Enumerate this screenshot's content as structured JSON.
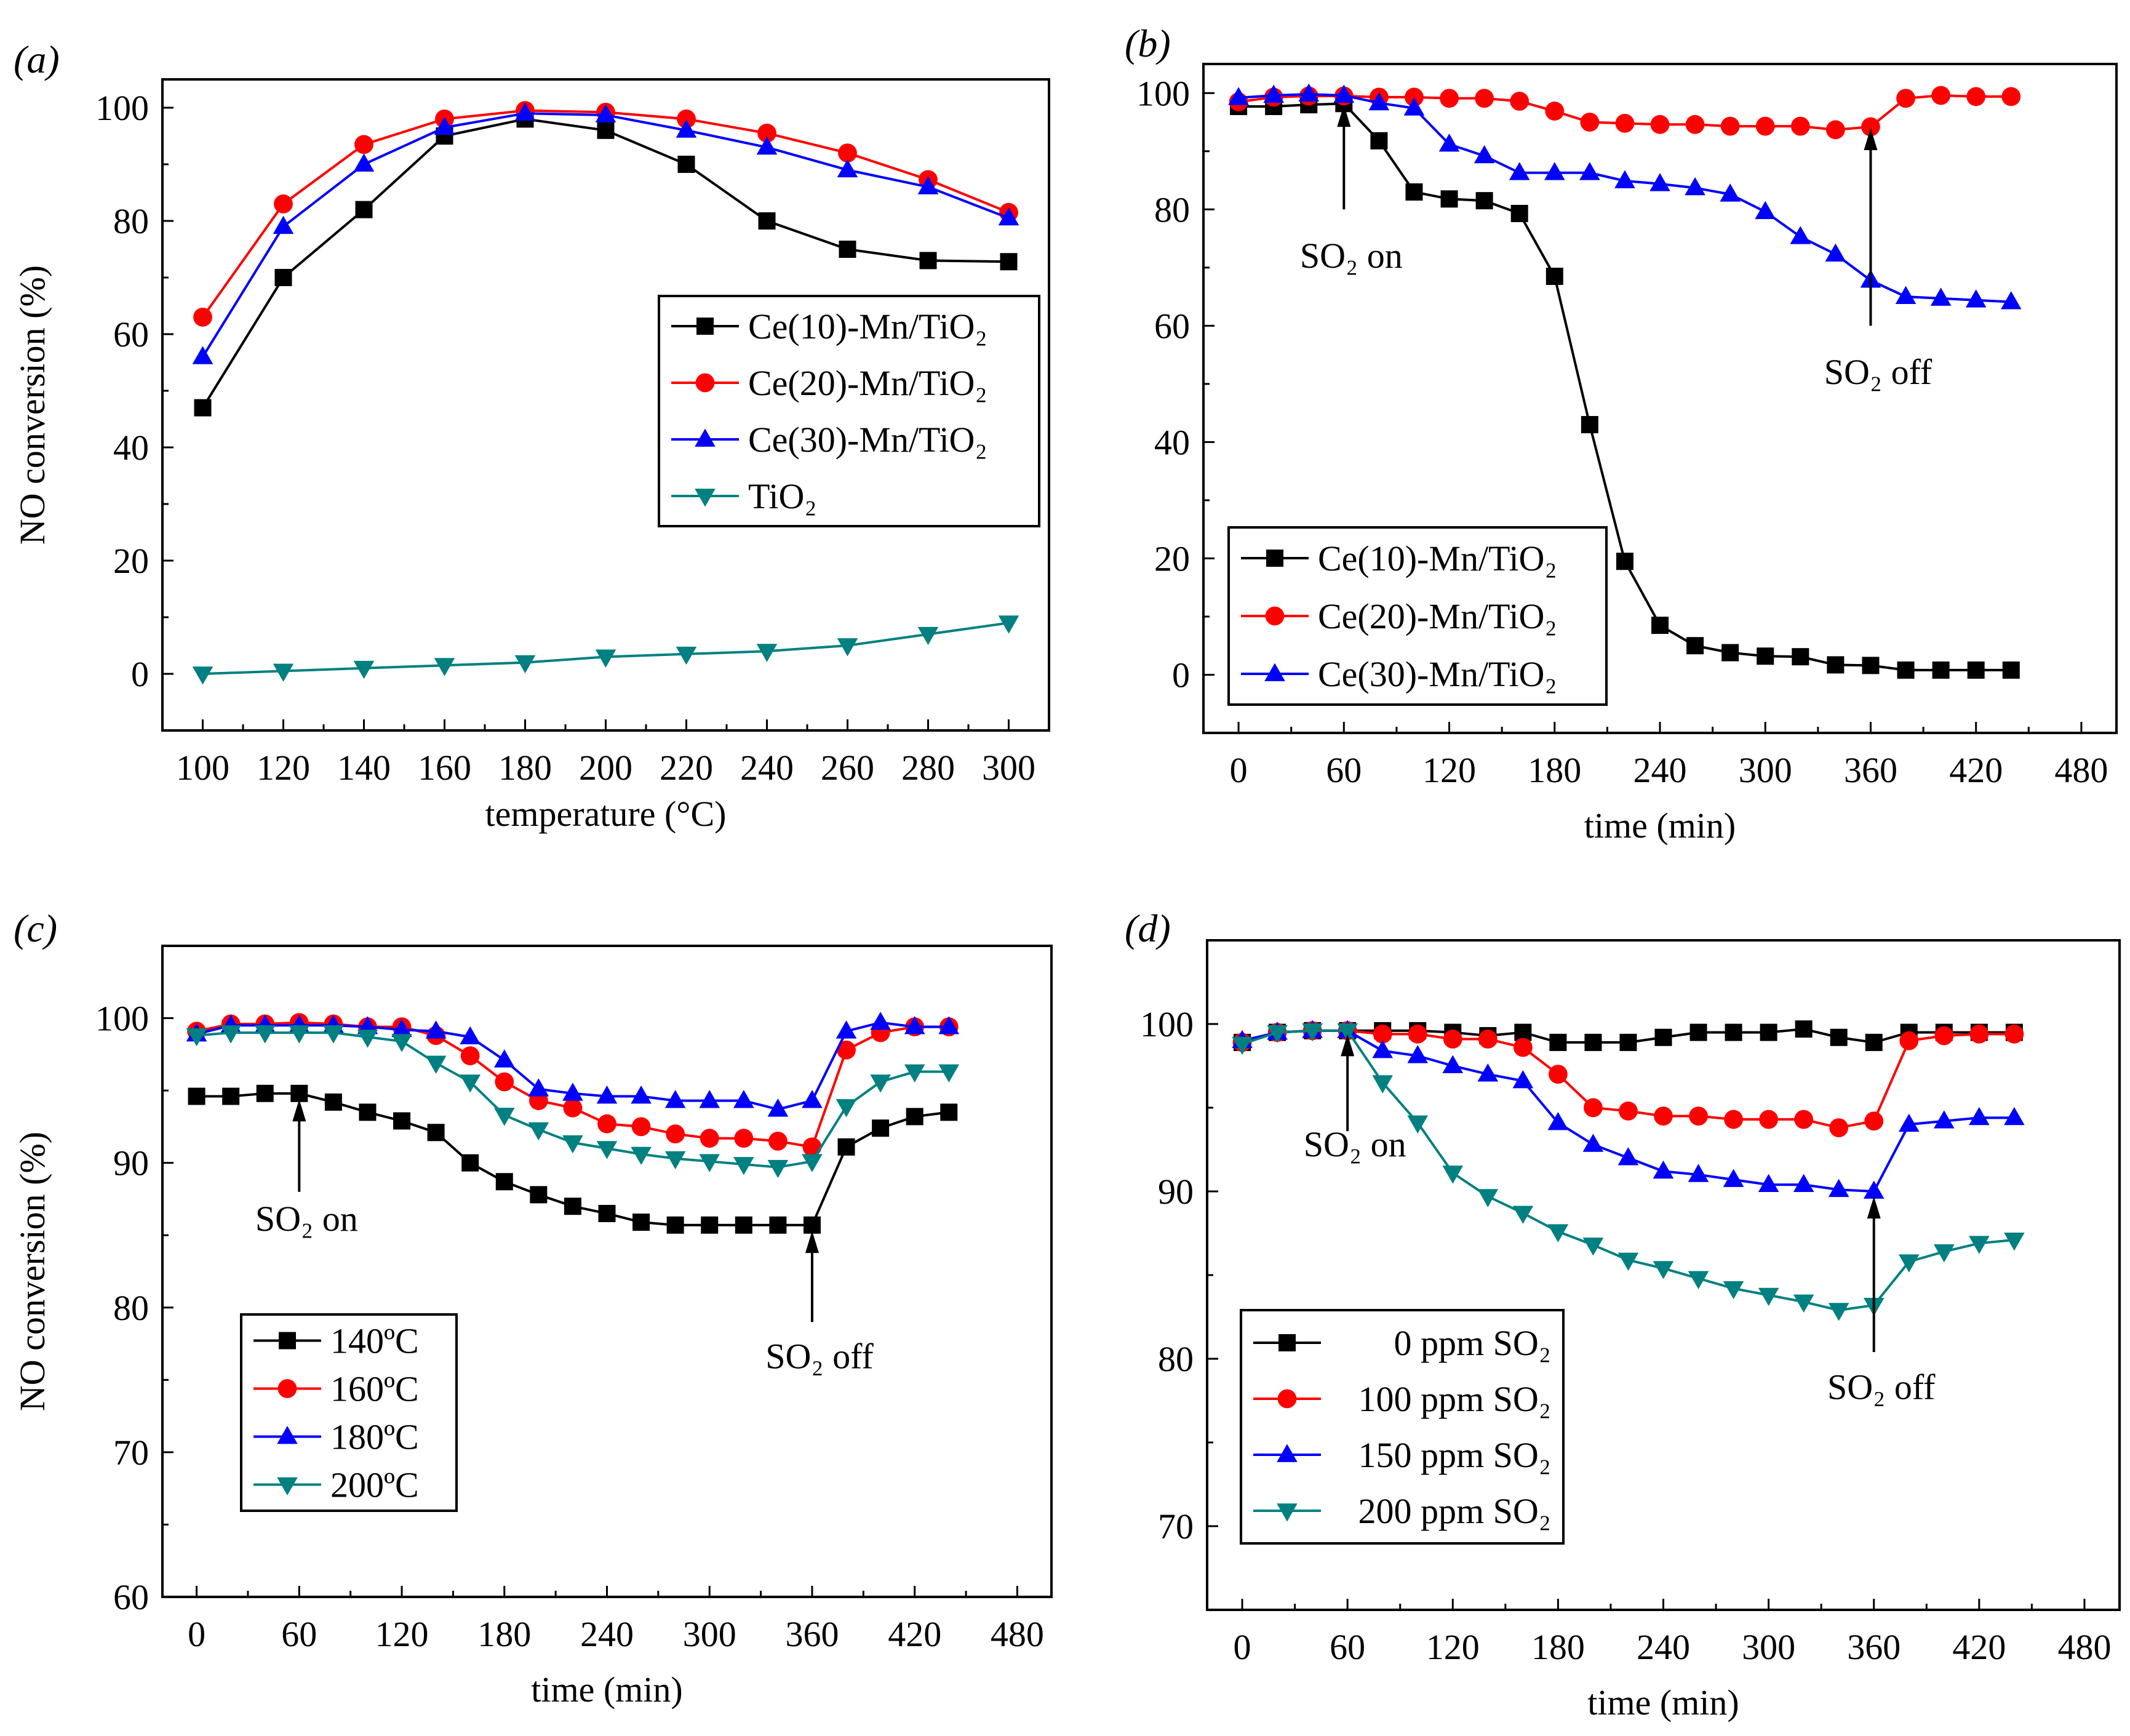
{
  "chart_data": [
    {
      "panel_label": "(a)",
      "type": "line",
      "xlabel": "temperature (°C)",
      "ylabel": "NO conversion (%)",
      "xlim": [
        90,
        310
      ],
      "ylim": [
        -10,
        105
      ],
      "xticks": [
        100,
        120,
        140,
        160,
        180,
        200,
        220,
        240,
        260,
        280,
        300
      ],
      "xminor": 10,
      "yticks": [
        0,
        20,
        40,
        60,
        80,
        100
      ],
      "yminor": 10,
      "legend_position": "center-right",
      "x": [
        100,
        120,
        140,
        160,
        180,
        200,
        220,
        240,
        260,
        280,
        300
      ],
      "series": [
        {
          "name": "Ce(10)-Mn/TiO₂",
          "color": "#000000",
          "marker": "square",
          "values": [
            47,
            70,
            82,
            95,
            98,
            96,
            90,
            80,
            75,
            73,
            72.8
          ]
        },
        {
          "name": "Ce(20)-Mn/TiO₂",
          "color": "#ff0000",
          "marker": "circle",
          "values": [
            63,
            83,
            93.5,
            98,
            99.5,
            99.2,
            98,
            95.5,
            92,
            87.3,
            81.5
          ]
        },
        {
          "name": "Ce(30)-Mn/TiO₂",
          "color": "#0000ff",
          "marker": "triangle-up",
          "values": [
            56,
            79,
            90,
            96.5,
            99,
            98.7,
            96,
            93,
            89,
            86,
            80.5
          ]
        },
        {
          "name": "TiO₂",
          "color": "#008080",
          "marker": "triangle-down",
          "values": [
            0,
            0.5,
            1,
            1.5,
            2,
            3,
            3.5,
            4,
            5,
            7,
            9
          ]
        }
      ],
      "annotations": []
    },
    {
      "panel_label": "(b)",
      "type": "line",
      "xlabel": "time (min)",
      "ylabel": "",
      "xlim": [
        -20,
        500
      ],
      "ylim": [
        -10,
        105
      ],
      "xticks": [
        0,
        60,
        120,
        180,
        240,
        300,
        360,
        420,
        480
      ],
      "xminor": 30,
      "yticks": [
        0,
        20,
        40,
        60,
        80,
        100
      ],
      "yminor": 10,
      "legend_position": "bottom-left",
      "x": [
        0,
        20,
        40,
        60,
        80,
        100,
        120,
        140,
        160,
        180,
        200,
        220,
        240,
        260,
        280,
        300,
        320,
        340,
        360,
        380,
        400,
        420,
        440
      ],
      "series": [
        {
          "name": "Ce(10)-Mn/TiO₂",
          "color": "#000000",
          "marker": "square",
          "values": [
            97.7,
            97.7,
            98,
            98.2,
            91.8,
            83,
            81.8,
            81.5,
            79.3,
            68.5,
            43,
            19.5,
            8.5,
            5,
            3.8,
            3.2,
            3.1,
            1.7,
            1.6,
            0.8,
            0.8,
            0.8,
            0.8
          ]
        },
        {
          "name": "Ce(20)-Mn/TiO₂",
          "color": "#ff0000",
          "marker": "circle",
          "values": [
            98.5,
            99.3,
            99.5,
            99.5,
            99.3,
            99.3,
            99.1,
            99.1,
            98.6,
            96.9,
            95,
            94.8,
            94.6,
            94.6,
            94.3,
            94.3,
            94.3,
            93.7,
            94.2,
            99.1,
            99.6,
            99.4,
            99.4
          ]
        },
        {
          "name": "Ce(30)-Mn/TiO₂",
          "color": "#0000ff",
          "marker": "triangle-up",
          "values": [
            99.2,
            99.6,
            99.8,
            99.6,
            98.3,
            97.4,
            91.2,
            89.2,
            86.3,
            86.3,
            86.3,
            84.9,
            84.4,
            83.7,
            82.6,
            79.6,
            75.3,
            72.3,
            67.8,
            65,
            64.7,
            64.4,
            64.1
          ]
        }
      ],
      "annotations": [
        {
          "text": "SO₂ on",
          "x": 60,
          "arrow_from": 80,
          "arrow_to": 98,
          "text_y": 70
        },
        {
          "text": "SO₂ off",
          "x": 360,
          "arrow_from": 60,
          "arrow_to": 94,
          "text_y": 50
        }
      ]
    },
    {
      "panel_label": "(c)",
      "type": "line",
      "xlabel": "time (min)",
      "ylabel": "NO conversion (%)",
      "xlim": [
        -20,
        500
      ],
      "ylim": [
        60,
        105
      ],
      "xticks": [
        0,
        60,
        120,
        180,
        240,
        300,
        360,
        420,
        480
      ],
      "xminor": 30,
      "yticks": [
        60,
        70,
        80,
        90,
        100
      ],
      "yminor": 5,
      "legend_position": "lower-left",
      "x": [
        0,
        20,
        40,
        60,
        80,
        100,
        120,
        140,
        160,
        180,
        200,
        220,
        240,
        260,
        280,
        300,
        320,
        340,
        360,
        380,
        400,
        420,
        440
      ],
      "series": [
        {
          "name": "140ºC",
          "color": "#000000",
          "marker": "square",
          "values": [
            94.6,
            94.6,
            94.8,
            94.8,
            94.2,
            93.5,
            92.9,
            92.1,
            90,
            88.7,
            87.8,
            87.0,
            86.5,
            85.9,
            85.7,
            85.7,
            85.7,
            85.7,
            85.7,
            91.1,
            92.4,
            93.2,
            93.5
          ]
        },
        {
          "name": "160ºC",
          "color": "#ff0000",
          "marker": "circle",
          "values": [
            99.1,
            99.6,
            99.6,
            99.7,
            99.6,
            99.4,
            99.4,
            98.8,
            97.4,
            95.6,
            94.3,
            93.8,
            92.7,
            92.5,
            92.0,
            91.7,
            91.7,
            91.5,
            91.1,
            97.8,
            99.0,
            99.4,
            99.4
          ]
        },
        {
          "name": "180ºC",
          "color": "#0000ff",
          "marker": "triangle-up",
          "values": [
            98.9,
            99.5,
            99.5,
            99.5,
            99.5,
            99.4,
            99.2,
            99.1,
            98.7,
            97.1,
            95.1,
            94.8,
            94.6,
            94.6,
            94.3,
            94.3,
            94.3,
            93.7,
            94.3,
            99.1,
            99.7,
            99.4,
            99.4
          ]
        },
        {
          "name": "200ºC",
          "color": "#008080",
          "marker": "triangle-down",
          "values": [
            98.8,
            99.0,
            99.0,
            99.0,
            99.0,
            98.7,
            98.4,
            96.9,
            95.6,
            93.3,
            92.3,
            91.4,
            91.0,
            90.6,
            90.3,
            90.1,
            89.9,
            89.7,
            90.1,
            93.9,
            95.6,
            96.3,
            96.3
          ]
        }
      ],
      "annotations": [
        {
          "text": "SO₂ on",
          "x": 60,
          "arrow_from": 88,
          "arrow_to": 94.4,
          "text_y": 85.3
        },
        {
          "text": "SO₂ off",
          "x": 360,
          "arrow_from": 79,
          "arrow_to": 85.3,
          "text_y": 75.8
        }
      ]
    },
    {
      "panel_label": "(d)",
      "type": "line",
      "xlabel": "time (min)",
      "ylabel": "",
      "xlim": [
        -20,
        500
      ],
      "ylim": [
        65,
        105
      ],
      "xticks": [
        0,
        60,
        120,
        180,
        240,
        300,
        360,
        420,
        480
      ],
      "xminor": 30,
      "yticks": [
        70,
        80,
        90,
        100
      ],
      "yminor": 5,
      "legend_position": "lower-left",
      "x": [
        0,
        20,
        40,
        60,
        80,
        100,
        120,
        140,
        160,
        180,
        200,
        220,
        240,
        260,
        280,
        300,
        320,
        340,
        360,
        380,
        400,
        420,
        440
      ],
      "series": [
        {
          "name": "0 ppm SO₂",
          "color": "#000000",
          "marker": "square",
          "values": [
            98.9,
            99.5,
            99.6,
            99.6,
            99.6,
            99.6,
            99.5,
            99.3,
            99.5,
            98.9,
            98.9,
            98.9,
            99.2,
            99.5,
            99.5,
            99.5,
            99.7,
            99.2,
            98.9,
            99.5,
            99.5,
            99.5,
            99.5
          ]
        },
        {
          "name": "100 ppm SO₂",
          "color": "#ff0000",
          "marker": "circle",
          "values": [
            98.9,
            99.5,
            99.6,
            99.6,
            99.4,
            99.4,
            99.1,
            99.1,
            98.6,
            97.0,
            95.0,
            94.8,
            94.5,
            94.5,
            94.3,
            94.3,
            94.3,
            93.8,
            94.2,
            99.0,
            99.3,
            99.4,
            99.4
          ]
        },
        {
          "name": "150 ppm SO₂",
          "color": "#0000ff",
          "marker": "triangle-up",
          "values": [
            99.0,
            99.5,
            99.6,
            99.6,
            98.4,
            98.1,
            97.5,
            97.0,
            96.6,
            94.1,
            92.8,
            92.0,
            91.2,
            91.0,
            90.7,
            90.4,
            90.4,
            90.1,
            90.0,
            94.0,
            94.2,
            94.4,
            94.4
          ]
        },
        {
          "name": "200 ppm SO₂",
          "color": "#008080",
          "marker": "triangle-down",
          "values": [
            98.8,
            99.5,
            99.6,
            99.6,
            96.5,
            94.1,
            91.1,
            89.7,
            88.7,
            87.6,
            86.8,
            85.9,
            85.4,
            84.8,
            84.2,
            83.8,
            83.4,
            82.9,
            83.2,
            85.8,
            86.4,
            86.9,
            87.1
          ]
        }
      ],
      "annotations": [
        {
          "text": "SO₂ on",
          "x": 60,
          "arrow_from": 93.6,
          "arrow_to": 99.4,
          "text_y": 92.1
        },
        {
          "text": "SO₂ off",
          "x": 360,
          "arrow_from": 80.4,
          "arrow_to": 89.7,
          "text_y": 77.6
        }
      ]
    }
  ]
}
